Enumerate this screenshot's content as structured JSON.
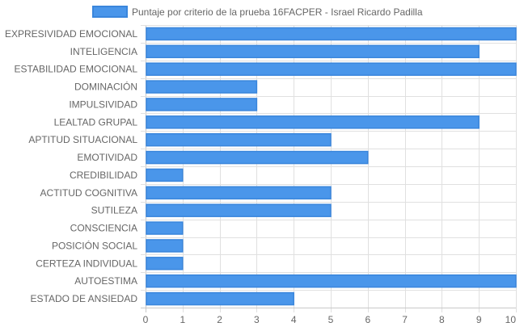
{
  "colors": {
    "bar_fill": "#4a96ea",
    "bar_stroke": "#3a86dc",
    "grid": "#e0e0e0",
    "axis": "#c8c8c8",
    "text": "#666666"
  },
  "chart_data": {
    "type": "bar",
    "orientation": "horizontal",
    "categories": [
      "EXPRESIVIDAD EMOCIONAL",
      "INTELIGENCIA",
      "ESTABILIDAD EMOCIONAL",
      "DOMINACIÓN",
      "IMPULSIVIDAD",
      "LEALTAD GRUPAL",
      "APTITUD SITUACIONAL",
      "EMOTIVIDAD",
      "CREDIBILIDAD",
      "ACTITUD COGNITIVA",
      "SUTILEZA",
      "CONSCIENCIA",
      "POSICIÓN SOCIAL",
      "CERTEZA INDIVIDUAL",
      "AUTOESTIMA",
      "ESTADO DE ANSIEDAD"
    ],
    "series": [
      {
        "name": "Puntaje por criterio de la prueba 16FACPER - Israel Ricardo Padilla",
        "values": [
          10,
          9,
          10,
          3,
          3,
          9,
          5,
          6,
          1,
          5,
          5,
          1,
          1,
          1,
          10,
          4
        ]
      }
    ],
    "xlim": [
      0,
      10
    ],
    "x_ticks": [
      "0",
      "1",
      "2",
      "3",
      "4",
      "5",
      "6",
      "7",
      "8",
      "9",
      "10"
    ],
    "grid": true,
    "legend_position": "top"
  }
}
